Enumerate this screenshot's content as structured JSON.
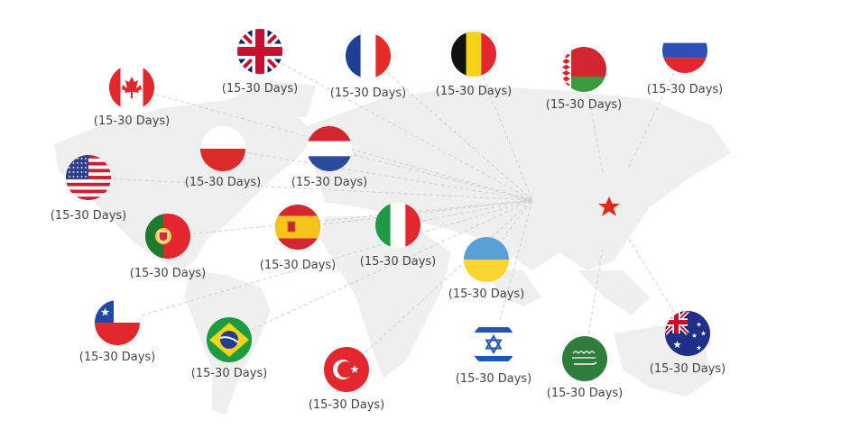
{
  "origin": {
    "name": "China",
    "icon": "red-star-icon",
    "color": "#e0281c"
  },
  "destinations": [
    {
      "country": "United Kingdom",
      "flag": "uk",
      "label": "(15-30 Days)"
    },
    {
      "country": "France",
      "flag": "fr",
      "label": "(15-30 Days)"
    },
    {
      "country": "Belgium",
      "flag": "be",
      "label": "(15-30 Days)"
    },
    {
      "country": "Belarus",
      "flag": "by",
      "label": "(15-30 Days)"
    },
    {
      "country": "Russia",
      "flag": "ru",
      "label": "(15-30 Days)"
    },
    {
      "country": "Canada",
      "flag": "ca",
      "label": "(15-30 Days)"
    },
    {
      "country": "Poland",
      "flag": "pl",
      "label": "(15-30 Days)"
    },
    {
      "country": "Netherlands",
      "flag": "nl",
      "label": "(15-30 Days)"
    },
    {
      "country": "United States",
      "flag": "us",
      "label": "(15-30 Days)"
    },
    {
      "country": "Portugal",
      "flag": "pt",
      "label": "(15-30 Days)"
    },
    {
      "country": "Spain",
      "flag": "es",
      "label": "(15-30 Days)"
    },
    {
      "country": "Italy",
      "flag": "it",
      "label": "(15-30 Days)"
    },
    {
      "country": "Ukraine",
      "flag": "ua",
      "label": "(15-30 Days)"
    },
    {
      "country": "Chile",
      "flag": "cl",
      "label": "(15-30 Days)"
    },
    {
      "country": "Brazil",
      "flag": "br",
      "label": "(15-30 Days)"
    },
    {
      "country": "Turkey",
      "flag": "tr",
      "label": "(15-30 Days)"
    },
    {
      "country": "Israel",
      "flag": "il",
      "label": "(15-30 Days)"
    },
    {
      "country": "Saudi Arabia",
      "flag": "sa",
      "label": "(15-30 Days)"
    },
    {
      "country": "Australia",
      "flag": "au",
      "label": "(15-30 Days)"
    }
  ]
}
